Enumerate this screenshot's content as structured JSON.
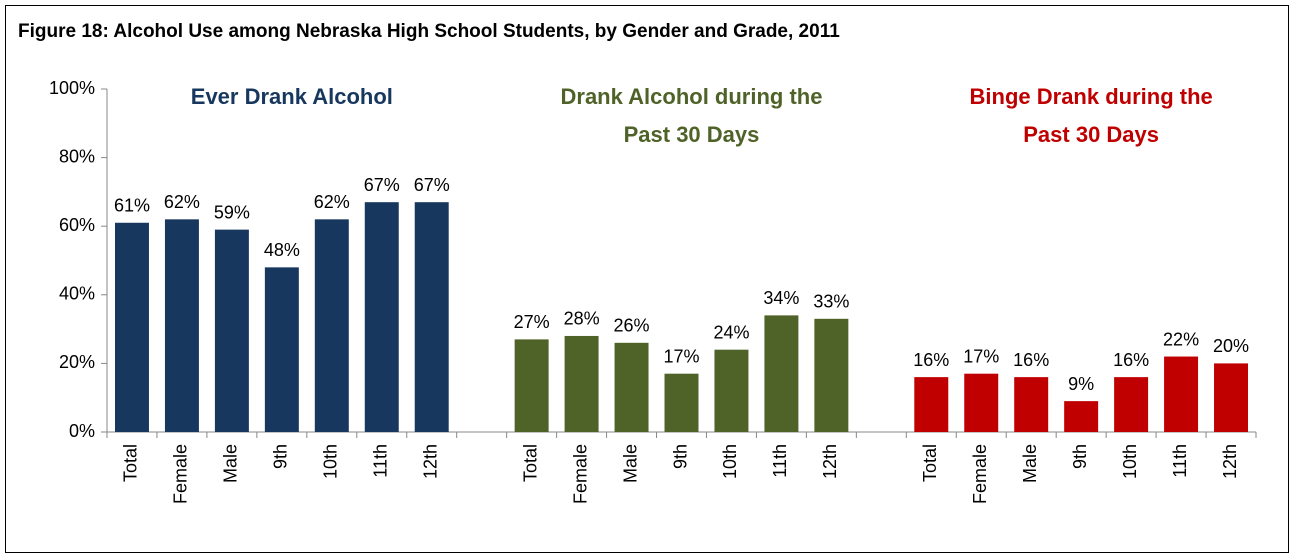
{
  "chart_data": {
    "type": "bar",
    "title": "Figure 18: Alcohol Use among Nebraska High School Students, by Gender and Grade, 2011",
    "categories": [
      "Total",
      "Female",
      "Male",
      "9th",
      "10th",
      "11th",
      "12th",
      null,
      "Total",
      "Female",
      "Male",
      "9th",
      "10th",
      "11th",
      "12th",
      null,
      "Total",
      "Female",
      "Male",
      "9th",
      "10th",
      "11th",
      "12th"
    ],
    "series": [
      {
        "name": "Ever Drank Alcohol",
        "color": "#17375e",
        "values": [
          61,
          62,
          59,
          48,
          62,
          67,
          67,
          null,
          null,
          null,
          null,
          null,
          null,
          null,
          null,
          null,
          null,
          null,
          null,
          null,
          null,
          null,
          null
        ],
        "value_labels": [
          "61%",
          "62%",
          "59%",
          "48%",
          "62%",
          "67%",
          "67%",
          null,
          null,
          null,
          null,
          null,
          null,
          null,
          null,
          null,
          null,
          null,
          null,
          null,
          null,
          null,
          null
        ]
      },
      {
        "name": "Drank Alcohol during the Past 30 Days",
        "color": "#4f6228",
        "values": [
          null,
          null,
          null,
          null,
          null,
          null,
          null,
          null,
          27,
          28,
          26,
          17,
          24,
          34,
          33,
          null,
          null,
          null,
          null,
          null,
          null,
          null,
          null
        ],
        "value_labels": [
          null,
          null,
          null,
          null,
          null,
          null,
          null,
          null,
          "27%",
          "28%",
          "26%",
          "17%",
          "24%",
          "34%",
          "33%",
          null,
          null,
          null,
          null,
          null,
          null,
          null,
          null
        ]
      },
      {
        "name": "Binge Drank during the Past 30 Days",
        "color": "#c00000",
        "values": [
          null,
          null,
          null,
          null,
          null,
          null,
          null,
          null,
          null,
          null,
          null,
          null,
          null,
          null,
          null,
          null,
          16,
          17,
          16,
          9,
          16,
          22,
          20
        ],
        "value_labels": [
          null,
          null,
          null,
          null,
          null,
          null,
          null,
          null,
          null,
          null,
          null,
          null,
          null,
          null,
          null,
          null,
          "16%",
          "17%",
          "16%",
          "9%",
          "16%",
          "22%",
          "20%"
        ]
      }
    ],
    "ylim": [
      0,
      100
    ],
    "yticks": [
      {
        "value": 0,
        "label": "0%"
      },
      {
        "value": 20,
        "label": "20%"
      },
      {
        "value": 40,
        "label": "40%"
      },
      {
        "value": 60,
        "label": "60%"
      },
      {
        "value": 80,
        "label": "80%"
      },
      {
        "value": 100,
        "label": "100%"
      }
    ],
    "grid": false
  }
}
